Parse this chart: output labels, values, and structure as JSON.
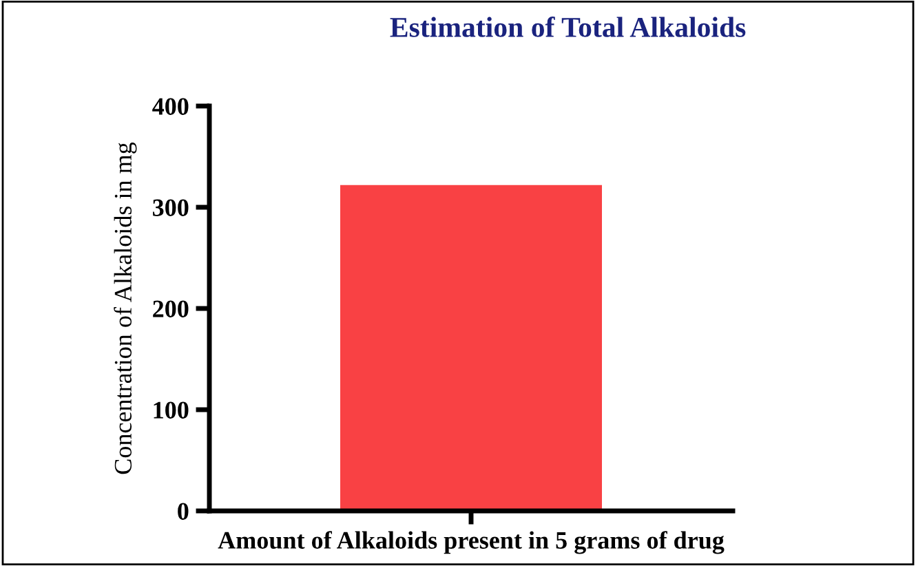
{
  "chart_data": {
    "type": "bar",
    "title": "Estimation of Total Alkaloids",
    "categories": [
      "Amount of Alkaloids present in 5 grams of drug"
    ],
    "values": [
      322
    ],
    "color": "#f94144",
    "ylabel": "Concentration of Alkaloids in mg",
    "ylim": [
      0,
      400
    ],
    "yticks": [
      0,
      100,
      200,
      300,
      400
    ],
    "grid": false
  }
}
